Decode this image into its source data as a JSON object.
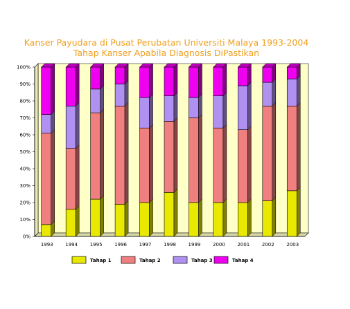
{
  "chart_data": {
    "type": "bar",
    "stacked": true,
    "percent": true,
    "title": "Kanser Payudara di Pusat Perubatan Universiti Malaya 1993-2004",
    "subtitle": "Tahap Kanser Apabila Diagnosis DiPastikan",
    "categories": [
      "1993",
      "1994",
      "1995",
      "1996",
      "1997",
      "1998",
      "1999",
      "2000",
      "2001",
      "2002",
      "2003"
    ],
    "ylim": [
      0,
      100
    ],
    "yticks": [
      "0%",
      "10%",
      "20%",
      "30%",
      "40%",
      "50%",
      "60%",
      "70%",
      "80%",
      "90%",
      "100%"
    ],
    "legend_position": "bottom",
    "grid": false,
    "plot_background": "#ffffc8",
    "series": [
      {
        "name": "Tahap 1",
        "color": "#e8e800",
        "values": [
          7,
          16,
          22,
          19,
          20,
          26,
          20,
          20,
          20,
          21,
          27
        ]
      },
      {
        "name": "Tahap 2",
        "color": "#f08080",
        "values": [
          54,
          36,
          51,
          58,
          44,
          42,
          50,
          44,
          43,
          56,
          50
        ]
      },
      {
        "name": "Tahap 3",
        "color": "#b090f0",
        "values": [
          11,
          25,
          14,
          13,
          18,
          15,
          12,
          19,
          26,
          14,
          16
        ]
      },
      {
        "name": "Tahap 4",
        "color": "#f000f0",
        "values": [
          28,
          23,
          13,
          10,
          18,
          17,
          18,
          17,
          11,
          9,
          7
        ]
      }
    ]
  }
}
